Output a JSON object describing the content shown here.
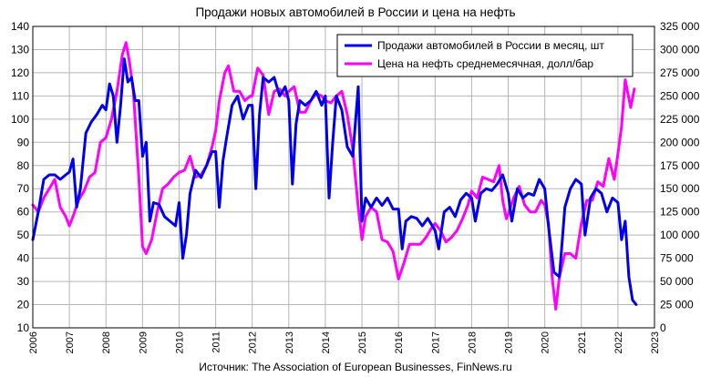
{
  "chart_data": {
    "type": "line",
    "title": "Продажи новых автомобилей в России и цена на нефть",
    "source": "Источник: The Association of European Businesses, FinNews.ru",
    "grid": true,
    "legend_position": "top-right",
    "x_ticks": [
      "2006",
      "2007",
      "2008",
      "2009",
      "2010",
      "2011",
      "2012",
      "2013",
      "2014",
      "2015",
      "2016",
      "2017",
      "2018",
      "2019",
      "2020",
      "2021",
      "2022",
      "2023"
    ],
    "y_left": {
      "ticks": [
        "10",
        "20",
        "30",
        "40",
        "50",
        "60",
        "70",
        "80",
        "90",
        "100",
        "110",
        "120",
        "130",
        "140"
      ],
      "range": [
        10,
        140
      ]
    },
    "y_right": {
      "ticks": [
        "0",
        "25 000",
        "50 000",
        "75 000",
        "100 000",
        "125 000",
        "150 000",
        "175 000",
        "200 000",
        "225 000",
        "250 000",
        "275 000",
        "300 000",
        "325 000"
      ],
      "range": [
        0,
        325000
      ]
    },
    "series": [
      {
        "name": "Продажи автомобилей в России в месяц, шт",
        "color": "#0000ee",
        "axis": "right",
        "points": [
          [
            2006.0,
            95000
          ],
          [
            2006.15,
            125000
          ],
          [
            2006.3,
            160000
          ],
          [
            2006.45,
            165000
          ],
          [
            2006.6,
            165000
          ],
          [
            2006.75,
            160000
          ],
          [
            2006.9,
            165000
          ],
          [
            2007.0,
            168000
          ],
          [
            2007.1,
            182000
          ],
          [
            2007.2,
            130000
          ],
          [
            2007.3,
            150000
          ],
          [
            2007.45,
            210000
          ],
          [
            2007.6,
            222000
          ],
          [
            2007.75,
            230000
          ],
          [
            2007.9,
            240000
          ],
          [
            2008.0,
            235000
          ],
          [
            2008.1,
            263000
          ],
          [
            2008.2,
            250000
          ],
          [
            2008.3,
            200000
          ],
          [
            2008.4,
            240000
          ],
          [
            2008.5,
            290000
          ],
          [
            2008.6,
            265000
          ],
          [
            2008.7,
            270000
          ],
          [
            2008.8,
            245000
          ],
          [
            2008.9,
            245000
          ],
          [
            2009.0,
            185000
          ],
          [
            2009.1,
            200000
          ],
          [
            2009.2,
            115000
          ],
          [
            2009.3,
            135000
          ],
          [
            2009.45,
            133000
          ],
          [
            2009.6,
            120000
          ],
          [
            2009.75,
            115000
          ],
          [
            2009.9,
            110000
          ],
          [
            2010.0,
            135000
          ],
          [
            2010.1,
            75000
          ],
          [
            2010.2,
            100000
          ],
          [
            2010.3,
            145000
          ],
          [
            2010.45,
            170000
          ],
          [
            2010.6,
            162000
          ],
          [
            2010.75,
            175000
          ],
          [
            2010.9,
            190000
          ],
          [
            2011.0,
            190000
          ],
          [
            2011.1,
            130000
          ],
          [
            2011.2,
            180000
          ],
          [
            2011.3,
            205000
          ],
          [
            2011.45,
            240000
          ],
          [
            2011.6,
            250000
          ],
          [
            2011.75,
            225000
          ],
          [
            2011.9,
            240000
          ],
          [
            2012.0,
            240000
          ],
          [
            2012.1,
            150000
          ],
          [
            2012.2,
            230000
          ],
          [
            2012.3,
            270000
          ],
          [
            2012.45,
            265000
          ],
          [
            2012.6,
            270000
          ],
          [
            2012.75,
            250000
          ],
          [
            2012.9,
            260000
          ],
          [
            2013.0,
            245000
          ],
          [
            2013.1,
            155000
          ],
          [
            2013.2,
            220000
          ],
          [
            2013.3,
            245000
          ],
          [
            2013.45,
            240000
          ],
          [
            2013.6,
            245000
          ],
          [
            2013.75,
            255000
          ],
          [
            2013.9,
            240000
          ],
          [
            2014.0,
            250000
          ],
          [
            2014.1,
            140000
          ],
          [
            2014.2,
            200000
          ],
          [
            2014.3,
            250000
          ],
          [
            2014.45,
            235000
          ],
          [
            2014.6,
            195000
          ],
          [
            2014.75,
            185000
          ],
          [
            2014.9,
            260000
          ],
          [
            2015.0,
            115000
          ],
          [
            2015.1,
            140000
          ],
          [
            2015.25,
            130000
          ],
          [
            2015.4,
            140000
          ],
          [
            2015.55,
            132000
          ],
          [
            2015.7,
            140000
          ],
          [
            2015.85,
            128000
          ],
          [
            2016.0,
            128000
          ],
          [
            2016.1,
            85000
          ],
          [
            2016.2,
            115000
          ],
          [
            2016.35,
            120000
          ],
          [
            2016.5,
            118000
          ],
          [
            2016.65,
            110000
          ],
          [
            2016.8,
            118000
          ],
          [
            2017.0,
            105000
          ],
          [
            2017.1,
            85000
          ],
          [
            2017.25,
            125000
          ],
          [
            2017.4,
            130000
          ],
          [
            2017.55,
            120000
          ],
          [
            2017.7,
            138000
          ],
          [
            2017.85,
            145000
          ],
          [
            2018.0,
            140000
          ],
          [
            2018.1,
            115000
          ],
          [
            2018.25,
            145000
          ],
          [
            2018.4,
            150000
          ],
          [
            2018.55,
            148000
          ],
          [
            2018.7,
            155000
          ],
          [
            2018.85,
            165000
          ],
          [
            2019.0,
            145000
          ],
          [
            2019.1,
            115000
          ],
          [
            2019.25,
            150000
          ],
          [
            2019.4,
            140000
          ],
          [
            2019.55,
            145000
          ],
          [
            2019.7,
            143000
          ],
          [
            2019.85,
            160000
          ],
          [
            2020.0,
            150000
          ],
          [
            2020.1,
            110000
          ],
          [
            2020.25,
            60000
          ],
          [
            2020.4,
            55000
          ],
          [
            2020.55,
            130000
          ],
          [
            2020.7,
            150000
          ],
          [
            2020.85,
            160000
          ],
          [
            2021.0,
            155000
          ],
          [
            2021.1,
            100000
          ],
          [
            2021.25,
            140000
          ],
          [
            2021.4,
            150000
          ],
          [
            2021.55,
            145000
          ],
          [
            2021.7,
            125000
          ],
          [
            2021.85,
            140000
          ],
          [
            2022.0,
            135000
          ],
          [
            2022.1,
            95000
          ],
          [
            2022.2,
            115000
          ],
          [
            2022.3,
            55000
          ],
          [
            2022.4,
            30000
          ],
          [
            2022.5,
            25000
          ]
        ]
      },
      {
        "name": "Цена на нефть среднемесячная, долл/бар",
        "color": "#ff00ff",
        "axis": "left",
        "points": [
          [
            2006.0,
            63
          ],
          [
            2006.15,
            60
          ],
          [
            2006.3,
            66
          ],
          [
            2006.45,
            70
          ],
          [
            2006.6,
            74
          ],
          [
            2006.75,
            62
          ],
          [
            2006.9,
            58
          ],
          [
            2007.0,
            54
          ],
          [
            2007.1,
            58
          ],
          [
            2007.25,
            65
          ],
          [
            2007.4,
            69
          ],
          [
            2007.55,
            75
          ],
          [
            2007.7,
            77
          ],
          [
            2007.85,
            90
          ],
          [
            2008.0,
            92
          ],
          [
            2008.15,
            100
          ],
          [
            2008.3,
            112
          ],
          [
            2008.45,
            128
          ],
          [
            2008.55,
            133
          ],
          [
            2008.65,
            124
          ],
          [
            2008.75,
            112
          ],
          [
            2008.9,
            75
          ],
          [
            2009.0,
            45
          ],
          [
            2009.1,
            42
          ],
          [
            2009.25,
            48
          ],
          [
            2009.4,
            60
          ],
          [
            2009.55,
            70
          ],
          [
            2009.7,
            72
          ],
          [
            2009.85,
            75
          ],
          [
            2010.0,
            77
          ],
          [
            2010.15,
            78
          ],
          [
            2010.3,
            84
          ],
          [
            2010.45,
            75
          ],
          [
            2010.6,
            76
          ],
          [
            2010.75,
            80
          ],
          [
            2010.9,
            88
          ],
          [
            2011.0,
            95
          ],
          [
            2011.1,
            108
          ],
          [
            2011.25,
            120
          ],
          [
            2011.35,
            123
          ],
          [
            2011.5,
            112
          ],
          [
            2011.65,
            112
          ],
          [
            2011.8,
            108
          ],
          [
            2011.95,
            110
          ],
          [
            2012.0,
            110
          ],
          [
            2012.15,
            122
          ],
          [
            2012.3,
            119
          ],
          [
            2012.45,
            102
          ],
          [
            2012.6,
            112
          ],
          [
            2012.75,
            113
          ],
          [
            2012.9,
            110
          ],
          [
            2013.0,
            112
          ],
          [
            2013.15,
            114
          ],
          [
            2013.3,
            103
          ],
          [
            2013.45,
            103
          ],
          [
            2013.6,
            108
          ],
          [
            2013.75,
            111
          ],
          [
            2013.9,
            110
          ],
          [
            2014.0,
            108
          ],
          [
            2014.15,
            107
          ],
          [
            2014.3,
            110
          ],
          [
            2014.45,
            112
          ],
          [
            2014.6,
            102
          ],
          [
            2014.75,
            87
          ],
          [
            2014.9,
            62
          ],
          [
            2015.0,
            48
          ],
          [
            2015.1,
            58
          ],
          [
            2015.25,
            62
          ],
          [
            2015.4,
            60
          ],
          [
            2015.55,
            48
          ],
          [
            2015.7,
            47
          ],
          [
            2015.85,
            43
          ],
          [
            2016.0,
            31
          ],
          [
            2016.15,
            38
          ],
          [
            2016.3,
            46
          ],
          [
            2016.45,
            46
          ],
          [
            2016.6,
            46
          ],
          [
            2016.75,
            49
          ],
          [
            2016.9,
            53
          ],
          [
            2017.0,
            55
          ],
          [
            2017.15,
            52
          ],
          [
            2017.3,
            47
          ],
          [
            2017.45,
            49
          ],
          [
            2017.6,
            52
          ],
          [
            2017.75,
            57
          ],
          [
            2017.9,
            63
          ],
          [
            2018.0,
            69
          ],
          [
            2018.15,
            66
          ],
          [
            2018.3,
            75
          ],
          [
            2018.45,
            74
          ],
          [
            2018.6,
            73
          ],
          [
            2018.75,
            80
          ],
          [
            2018.85,
            65
          ],
          [
            2018.95,
            57
          ],
          [
            2019.0,
            59
          ],
          [
            2019.15,
            66
          ],
          [
            2019.3,
            71
          ],
          [
            2019.45,
            63
          ],
          [
            2019.6,
            60
          ],
          [
            2019.75,
            60
          ],
          [
            2019.9,
            65
          ],
          [
            2020.0,
            63
          ],
          [
            2020.1,
            55
          ],
          [
            2020.2,
            32
          ],
          [
            2020.3,
            18
          ],
          [
            2020.4,
            32
          ],
          [
            2020.55,
            42
          ],
          [
            2020.7,
            42
          ],
          [
            2020.85,
            40
          ],
          [
            2021.0,
            55
          ],
          [
            2021.15,
            65
          ],
          [
            2021.3,
            65
          ],
          [
            2021.45,
            73
          ],
          [
            2021.6,
            71
          ],
          [
            2021.75,
            83
          ],
          [
            2021.9,
            74
          ],
          [
            2022.0,
            85
          ],
          [
            2022.1,
            97
          ],
          [
            2022.2,
            117
          ],
          [
            2022.35,
            105
          ],
          [
            2022.45,
            113
          ]
        ]
      }
    ]
  }
}
